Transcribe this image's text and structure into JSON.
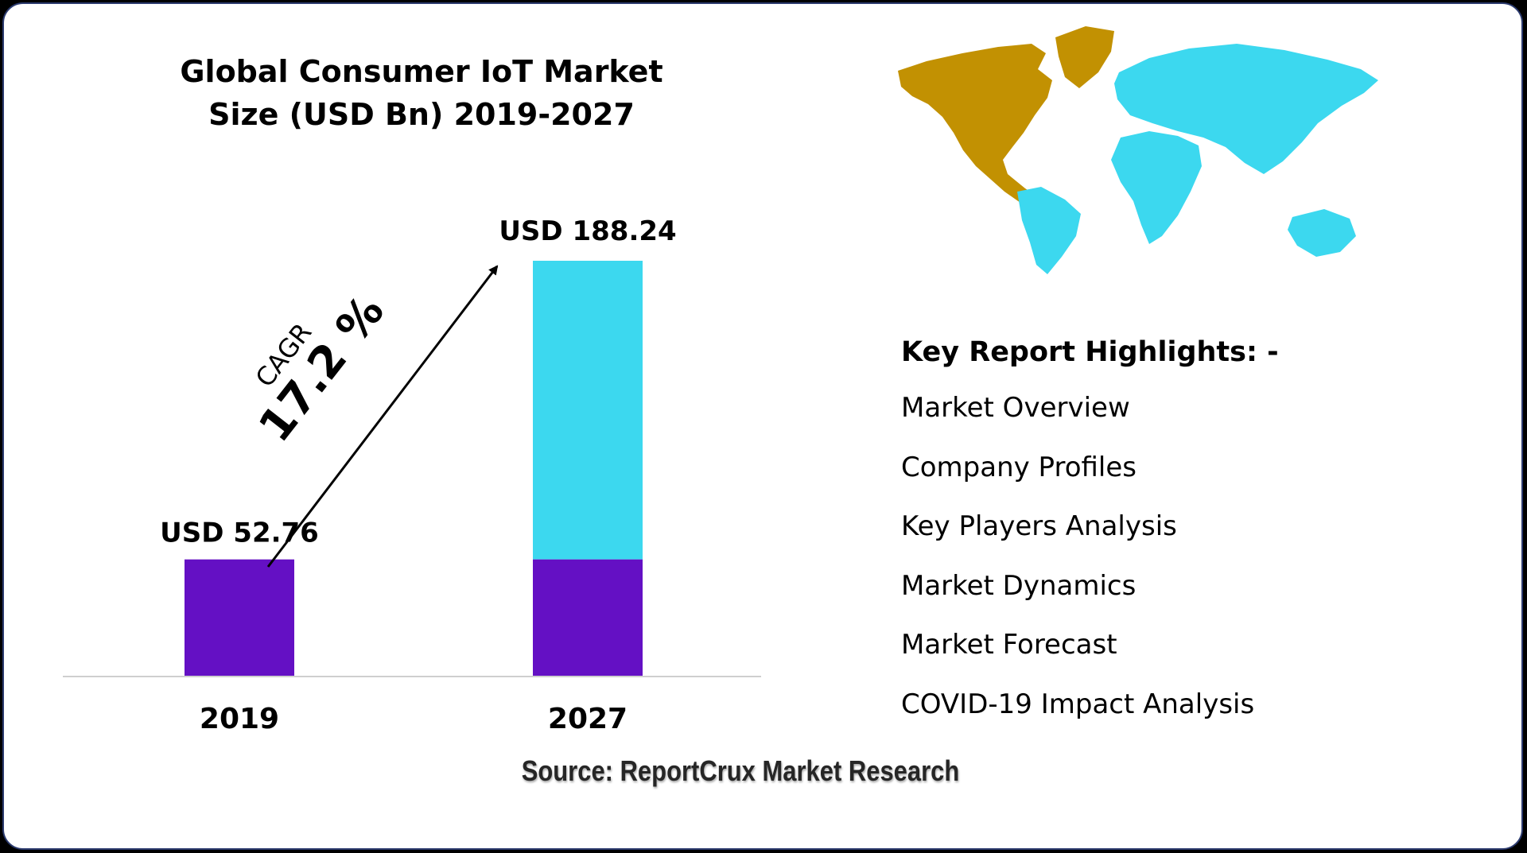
{
  "chart_data": {
    "type": "bar",
    "title": "Global Consumer IoT Market\nSize (USD Bn) 2019-2027",
    "categories": [
      "2019",
      "2027"
    ],
    "values": [
      52.76,
      188.24
    ],
    "data_labels": [
      "USD 52.76",
      "USD 188.24"
    ],
    "colors": {
      "base": "#6410c4",
      "growth": "#3cd8ef",
      "axis": "#cfcfcf"
    },
    "xlabel": "",
    "ylabel": "",
    "ylim": [
      0,
      188.24
    ],
    "grid": false,
    "annotation": {
      "label": "CAGR",
      "value": "17.2 %"
    }
  },
  "map": {
    "americas_color": "#c29102",
    "rest_color": "#3cd8ef",
    "icon": "world-map-icon"
  },
  "highlights": {
    "title": "Key Report Highlights: -",
    "items": [
      "Market Overview",
      "Company Profiles",
      "Key Players Analysis",
      "Market Dynamics",
      "Market Forecast",
      "COVID-19 Impact Analysis"
    ]
  },
  "source": "Source: ReportCrux Market Research"
}
